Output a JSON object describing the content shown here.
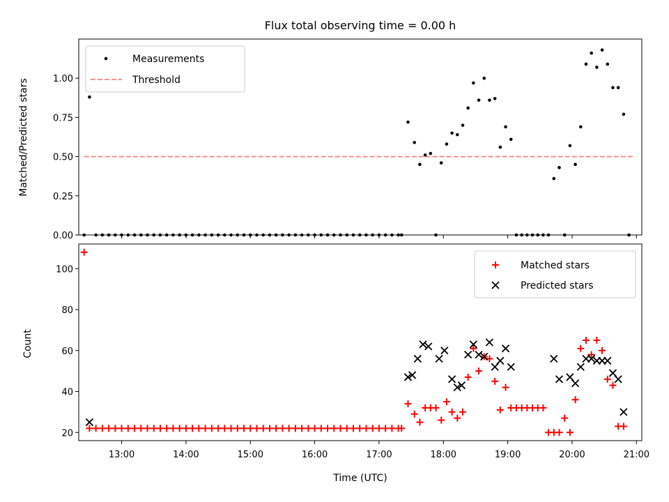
{
  "colors": {
    "measurement": "#000000",
    "threshold": "#ff7f7f",
    "matched": "#ff0000",
    "predicted": "#000000"
  },
  "chart_data": [
    {
      "type": "scatter",
      "title": "Flux total observing time = 0.00 h",
      "ylabel": "Matched/Predicted stars",
      "xlim": [
        "12:20",
        "21:05"
      ],
      "ylim": [
        0,
        1.25
      ],
      "yticks": [
        0.0,
        0.25,
        0.5,
        0.75,
        1.0
      ],
      "ytick_labels": [
        "0.00",
        "0.25",
        "0.50",
        "0.75",
        "1.00"
      ],
      "legend": {
        "position": "upper-left",
        "entries": [
          "Measurements",
          "Threshold"
        ]
      },
      "series": [
        {
          "name": "Measurements",
          "marker": "dot",
          "points": [
            [
              "12:25",
              0
            ],
            [
              "12:30",
              0.88
            ],
            [
              "12:36",
              0
            ],
            [
              "12:42",
              0
            ],
            [
              "12:48",
              0
            ],
            [
              "12:54",
              0
            ],
            [
              "13:00",
              0
            ],
            [
              "13:06",
              0
            ],
            [
              "13:12",
              0
            ],
            [
              "13:18",
              0
            ],
            [
              "13:24",
              0
            ],
            [
              "13:30",
              0
            ],
            [
              "13:36",
              0
            ],
            [
              "13:42",
              0
            ],
            [
              "13:48",
              0
            ],
            [
              "13:54",
              0
            ],
            [
              "14:00",
              0
            ],
            [
              "14:06",
              0
            ],
            [
              "14:12",
              0
            ],
            [
              "14:18",
              0
            ],
            [
              "14:24",
              0
            ],
            [
              "14:30",
              0
            ],
            [
              "14:36",
              0
            ],
            [
              "14:42",
              0
            ],
            [
              "14:48",
              0
            ],
            [
              "14:54",
              0
            ],
            [
              "15:00",
              0
            ],
            [
              "15:06",
              0
            ],
            [
              "15:12",
              0
            ],
            [
              "15:18",
              0
            ],
            [
              "15:24",
              0
            ],
            [
              "15:30",
              0
            ],
            [
              "15:36",
              0
            ],
            [
              "15:42",
              0
            ],
            [
              "15:48",
              0
            ],
            [
              "15:54",
              0
            ],
            [
              "16:00",
              0
            ],
            [
              "16:06",
              0
            ],
            [
              "16:12",
              0
            ],
            [
              "16:18",
              0
            ],
            [
              "16:24",
              0
            ],
            [
              "16:30",
              0
            ],
            [
              "16:36",
              0
            ],
            [
              "16:42",
              0
            ],
            [
              "16:48",
              0
            ],
            [
              "16:54",
              0
            ],
            [
              "17:00",
              0
            ],
            [
              "17:06",
              0
            ],
            [
              "17:12",
              0
            ],
            [
              "17:18",
              0
            ],
            [
              "17:21",
              0
            ],
            [
              "17:27",
              0.72
            ],
            [
              "17:33",
              0.59
            ],
            [
              "17:38",
              0.45
            ],
            [
              "17:43",
              0.51
            ],
            [
              "17:48",
              0.52
            ],
            [
              "17:53",
              0
            ],
            [
              "17:58",
              0.46
            ],
            [
              "18:03",
              0.58
            ],
            [
              "18:08",
              0.65
            ],
            [
              "18:13",
              0.64
            ],
            [
              "18:18",
              0.7
            ],
            [
              "18:23",
              0.81
            ],
            [
              "18:28",
              0.97
            ],
            [
              "18:33",
              0.86
            ],
            [
              "18:38",
              1.0
            ],
            [
              "18:43",
              0.86
            ],
            [
              "18:48",
              0.87
            ],
            [
              "18:53",
              0.56
            ],
            [
              "18:58",
              0.69
            ],
            [
              "19:03",
              0.61
            ],
            [
              "19:08",
              0
            ],
            [
              "19:13",
              0
            ],
            [
              "19:18",
              0
            ],
            [
              "19:23",
              0
            ],
            [
              "19:28",
              0
            ],
            [
              "19:33",
              0
            ],
            [
              "19:38",
              0
            ],
            [
              "19:43",
              0.36
            ],
            [
              "19:48",
              0.43
            ],
            [
              "19:53",
              0
            ],
            [
              "19:58",
              0.57
            ],
            [
              "20:03",
              0.45
            ],
            [
              "20:08",
              0.69
            ],
            [
              "20:13",
              1.09
            ],
            [
              "20:18",
              1.16
            ],
            [
              "20:23",
              1.07
            ],
            [
              "20:28",
              1.18
            ],
            [
              "20:33",
              1.09
            ],
            [
              "20:38",
              0.94
            ],
            [
              "20:43",
              0.94
            ],
            [
              "20:48",
              0.77
            ],
            [
              "20:53",
              0
            ]
          ]
        },
        {
          "name": "Threshold",
          "line": "dashed",
          "points": [
            [
              "12:25",
              0.5
            ],
            [
              "20:58",
              0.5
            ]
          ]
        }
      ]
    },
    {
      "type": "scatter",
      "xlabel": "Time (UTC)",
      "ylabel": "Count",
      "xlim": [
        "12:20",
        "21:05"
      ],
      "ylim": [
        16,
        112
      ],
      "xticks": [
        "13:00",
        "14:00",
        "15:00",
        "16:00",
        "17:00",
        "18:00",
        "19:00",
        "20:00",
        "21:00"
      ],
      "yticks": [
        20,
        40,
        60,
        80,
        100
      ],
      "ytick_labels": [
        "20",
        "40",
        "60",
        "80",
        "100"
      ],
      "legend": {
        "position": "upper-right",
        "entries": [
          "Matched stars",
          "Predicted stars"
        ]
      },
      "series": [
        {
          "name": "Matched stars",
          "marker": "plus",
          "points": [
            [
              "12:25",
              108
            ],
            [
              "12:30",
              22
            ],
            [
              "12:36",
              22
            ],
            [
              "12:42",
              22
            ],
            [
              "12:48",
              22
            ],
            [
              "12:54",
              22
            ],
            [
              "13:00",
              22
            ],
            [
              "13:06",
              22
            ],
            [
              "13:12",
              22
            ],
            [
              "13:18",
              22
            ],
            [
              "13:24",
              22
            ],
            [
              "13:30",
              22
            ],
            [
              "13:36",
              22
            ],
            [
              "13:42",
              22
            ],
            [
              "13:48",
              22
            ],
            [
              "13:54",
              22
            ],
            [
              "14:00",
              22
            ],
            [
              "14:06",
              22
            ],
            [
              "14:12",
              22
            ],
            [
              "14:18",
              22
            ],
            [
              "14:24",
              22
            ],
            [
              "14:30",
              22
            ],
            [
              "14:36",
              22
            ],
            [
              "14:42",
              22
            ],
            [
              "14:48",
              22
            ],
            [
              "14:54",
              22
            ],
            [
              "15:00",
              22
            ],
            [
              "15:06",
              22
            ],
            [
              "15:12",
              22
            ],
            [
              "15:18",
              22
            ],
            [
              "15:24",
              22
            ],
            [
              "15:30",
              22
            ],
            [
              "15:36",
              22
            ],
            [
              "15:42",
              22
            ],
            [
              "15:48",
              22
            ],
            [
              "15:54",
              22
            ],
            [
              "16:00",
              22
            ],
            [
              "16:06",
              22
            ],
            [
              "16:12",
              22
            ],
            [
              "16:18",
              22
            ],
            [
              "16:24",
              22
            ],
            [
              "16:30",
              22
            ],
            [
              "16:36",
              22
            ],
            [
              "16:42",
              22
            ],
            [
              "16:48",
              22
            ],
            [
              "16:54",
              22
            ],
            [
              "17:00",
              22
            ],
            [
              "17:06",
              22
            ],
            [
              "17:12",
              22
            ],
            [
              "17:18",
              22
            ],
            [
              "17:21",
              22
            ],
            [
              "17:27",
              34
            ],
            [
              "17:33",
              29
            ],
            [
              "17:38",
              25
            ],
            [
              "17:43",
              32
            ],
            [
              "17:48",
              32
            ],
            [
              "17:53",
              32
            ],
            [
              "17:58",
              26
            ],
            [
              "18:03",
              35
            ],
            [
              "18:08",
              30
            ],
            [
              "18:13",
              27
            ],
            [
              "18:18",
              30
            ],
            [
              "18:23",
              47
            ],
            [
              "18:28",
              61
            ],
            [
              "18:33",
              50
            ],
            [
              "18:38",
              57
            ],
            [
              "18:43",
              56
            ],
            [
              "18:48",
              45
            ],
            [
              "18:53",
              31
            ],
            [
              "18:58",
              42
            ],
            [
              "19:03",
              32
            ],
            [
              "19:08",
              32
            ],
            [
              "19:13",
              32
            ],
            [
              "19:18",
              32
            ],
            [
              "19:23",
              32
            ],
            [
              "19:28",
              32
            ],
            [
              "19:33",
              32
            ],
            [
              "19:38",
              20
            ],
            [
              "19:43",
              20
            ],
            [
              "19:48",
              20
            ],
            [
              "19:53",
              27
            ],
            [
              "19:58",
              20
            ],
            [
              "20:03",
              36
            ],
            [
              "20:08",
              61
            ],
            [
              "20:13",
              65
            ],
            [
              "20:18",
              58
            ],
            [
              "20:23",
              65
            ],
            [
              "20:28",
              60
            ],
            [
              "20:33",
              46
            ],
            [
              "20:38",
              43
            ],
            [
              "20:43",
              23
            ],
            [
              "20:48",
              23
            ]
          ]
        },
        {
          "name": "Predicted stars",
          "marker": "x",
          "points": [
            [
              "12:30",
              25
            ],
            [
              "17:27",
              47
            ],
            [
              "17:31",
              48
            ],
            [
              "17:36",
              56
            ],
            [
              "17:41",
              63
            ],
            [
              "17:46",
              62
            ],
            [
              "17:56",
              56
            ],
            [
              "18:01",
              60
            ],
            [
              "18:08",
              46
            ],
            [
              "18:13",
              42
            ],
            [
              "18:17",
              43
            ],
            [
              "18:23",
              58
            ],
            [
              "18:28",
              63
            ],
            [
              "18:33",
              58
            ],
            [
              "18:38",
              57
            ],
            [
              "18:43",
              64
            ],
            [
              "18:48",
              52
            ],
            [
              "18:53",
              55
            ],
            [
              "18:58",
              61
            ],
            [
              "19:03",
              52
            ],
            [
              "19:43",
              56
            ],
            [
              "19:48",
              46
            ],
            [
              "19:58",
              47
            ],
            [
              "20:03",
              44
            ],
            [
              "20:08",
              52
            ],
            [
              "20:13",
              56
            ],
            [
              "20:18",
              56
            ],
            [
              "20:23",
              55
            ],
            [
              "20:28",
              55
            ],
            [
              "20:33",
              55
            ],
            [
              "20:38",
              49
            ],
            [
              "20:43",
              46
            ],
            [
              "20:48",
              30
            ]
          ]
        }
      ]
    }
  ]
}
